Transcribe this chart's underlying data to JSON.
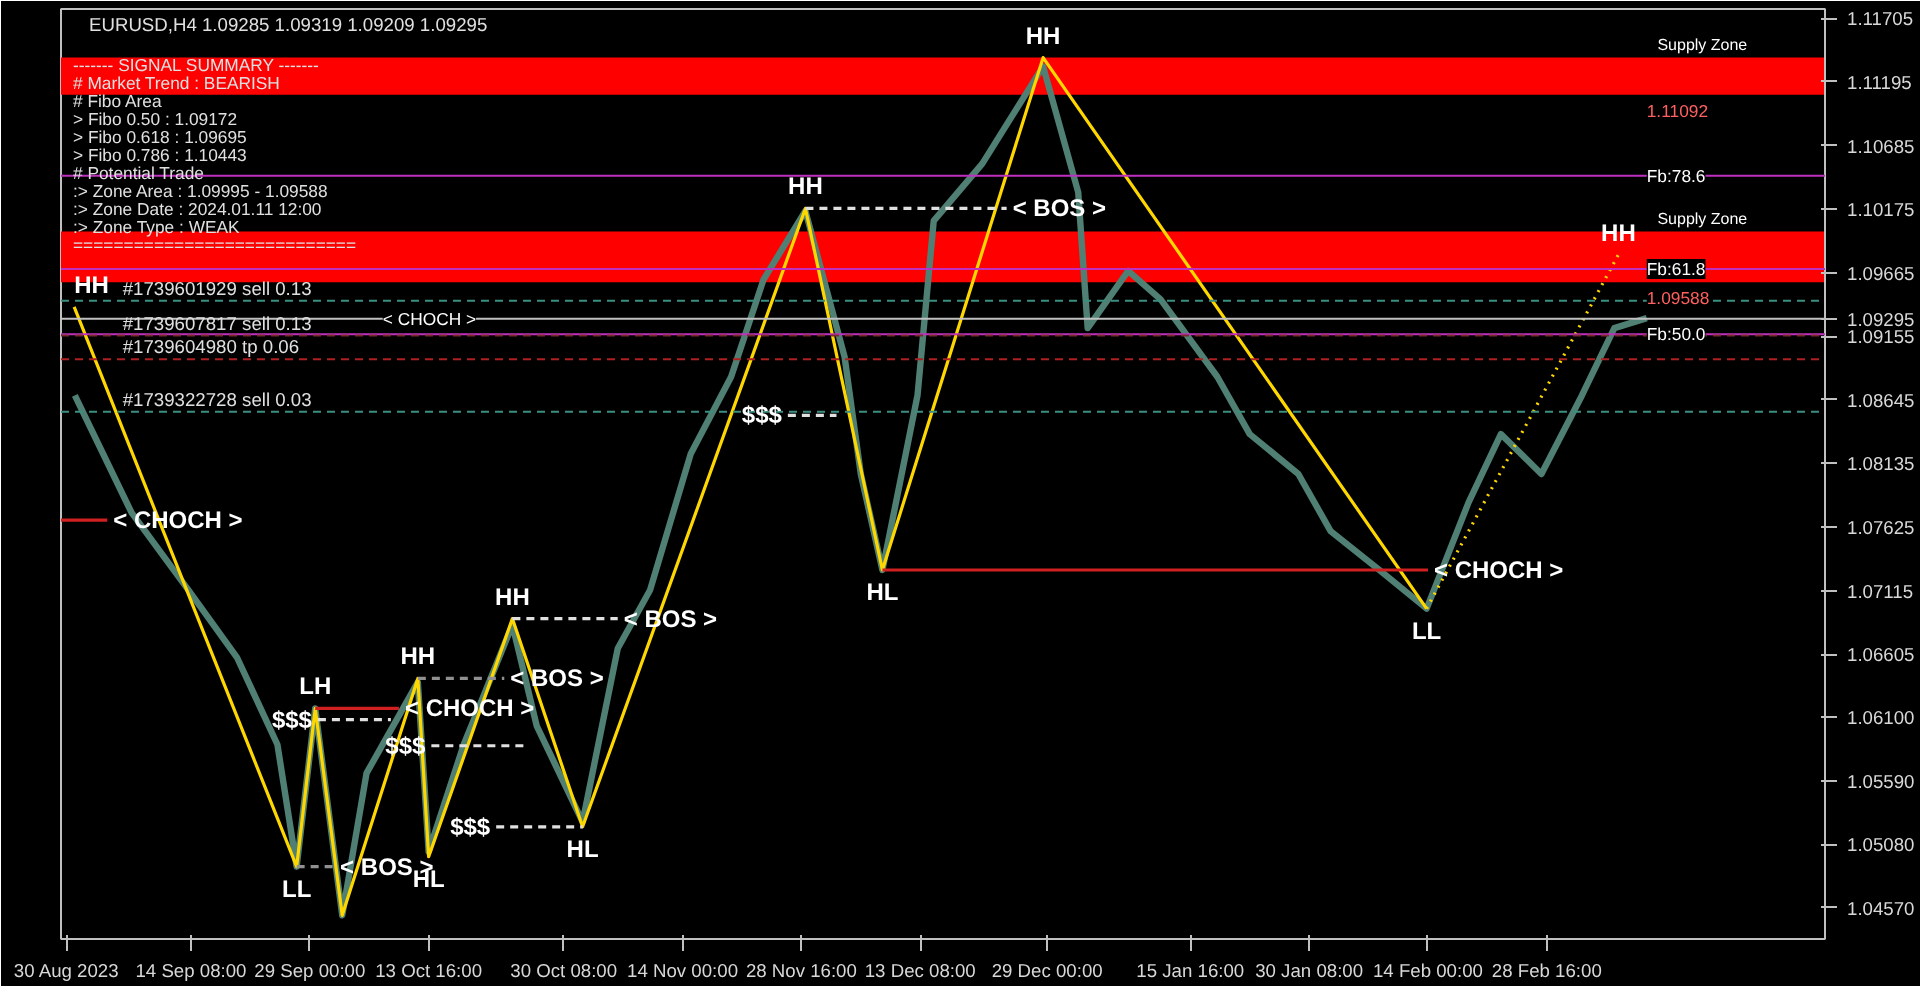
{
  "chart_data": {
    "type": "line",
    "title": "EURUSD,H4  1.09285 1.09319 1.09209 1.09295",
    "xlim": [
      "2023-08-29T07:00",
      "2024-04-03"
    ],
    "ylim": [
      1.0432,
      1.1178
    ],
    "xticks": [
      {
        "value": "2023-08-30T00:00",
        "label": "30 Aug 2023"
      },
      {
        "value": "2023-09-14T08:00",
        "label": "14 Sep 08:00"
      },
      {
        "value": "2023-09-29T00:00",
        "label": "29 Sep 00:00"
      },
      {
        "value": "2023-10-13T16:00",
        "label": "13 Oct 16:00"
      },
      {
        "value": "2023-10-30T08:00",
        "label": "30 Oct 08:00"
      },
      {
        "value": "2023-11-14T00:00",
        "label": "14 Nov 00:00"
      },
      {
        "value": "2023-11-28T16:00",
        "label": "28 Nov 16:00"
      },
      {
        "value": "2023-12-13T08:00",
        "label": "13 Dec 08:00"
      },
      {
        "value": "2023-12-29T00:00",
        "label": "29 Dec 00:00"
      },
      {
        "value": "2024-01-15T16:00",
        "label": "15 Jan 16:00"
      },
      {
        "value": "2024-01-30T08:00",
        "label": "30 Jan 08:00"
      },
      {
        "value": "2024-02-14T00:00",
        "label": "14 Feb 00:00"
      },
      {
        "value": "2024-02-28T16:00",
        "label": "28 Feb 16:00"
      }
    ],
    "yticks": [
      1.11705,
      1.11195,
      1.10685,
      1.10175,
      1.09665,
      {
        "value": 1.09295,
        "label": "1.09295"
      },
      1.09155,
      1.08645,
      1.08135,
      1.07625,
      1.07115,
      1.06605,
      {
        "value": 1.061,
        "label": "1.06100"
      },
      {
        "value": 1.0559,
        "label": "1.05590"
      },
      {
        "value": 1.0508,
        "label": "1.05080"
      },
      {
        "value": 1.0457,
        "label": "1.04570"
      }
    ],
    "series": [
      {
        "color": "#4f8073",
        "x": [
          "2023-08-31",
          "2023-09-07",
          "2023-09-14",
          "2023-09-20",
          "2023-09-25",
          "2023-09-27T09:00",
          "2023-09-29T16:00",
          "2023-10-03",
          "2023-10-06",
          "2023-10-12T08:00",
          "2023-10-13T16:00",
          "2023-10-18",
          "2023-10-24",
          "2023-10-27",
          "2023-11-01T16:00",
          "2023-11-06",
          "2023-11-10",
          "2023-11-15",
          "2023-11-20",
          "2023-11-24",
          "2023-11-29T04:00",
          "2023-12-04",
          "2023-12-06",
          "2023-12-08T16:00",
          "2023-12-13",
          "2023-12-15",
          "2023-12-21",
          "2023-12-28T12:00",
          "2024-01-01T20:00",
          "2024-01-03",
          "2024-01-08",
          "2024-01-12",
          "2024-01-19",
          "2024-01-23",
          "2024-01-29",
          "2024-02-02",
          "2024-02-08",
          "2024-02-13T20:00",
          "2024-02-19",
          "2024-02-23",
          "2024-02-28",
          "2024-03-04",
          "2024-03-08",
          "2024-03-12"
        ],
        "values": [
          1.0868,
          1.0774,
          1.0712,
          1.0658,
          1.0588,
          1.049,
          1.0617,
          1.0451,
          1.0565,
          1.0638,
          1.0502,
          1.0588,
          1.0684,
          1.0603,
          1.0526,
          1.0665,
          1.0712,
          1.0821,
          1.0883,
          1.0961,
          1.1016,
          1.0899,
          1.0805,
          1.0728,
          1.0868,
          1.1008,
          1.1054,
          1.1132,
          1.1031,
          1.0922,
          1.0968,
          1.0945,
          1.0883,
          1.0837,
          1.0805,
          1.0759,
          1.0728,
          1.0697,
          1.0782,
          1.0837,
          1.0805,
          1.0868,
          1.0922,
          1.093
        ]
      },
      {
        "color": "#ffd700",
        "x": [
          "2023-08-30T22:00",
          "2023-09-27T09:00",
          "2023-09-29T16:00",
          "2023-10-03",
          "2023-10-12T08:00",
          "2023-10-13T16:00",
          "2023-10-24",
          "2023-11-01T16:00",
          "2023-11-29T04:00",
          "2023-12-08T16:00",
          "2023-12-28T12:00",
          "2024-02-13T20:00"
        ],
        "values": [
          1.0939,
          1.049,
          1.0617,
          1.0451,
          1.0641,
          1.0498,
          1.0689,
          1.0522,
          1.1018,
          1.0728,
          1.1139,
          1.0697
        ]
      },
      {
        "color": "#ffd700",
        "line_style": "dotted",
        "x": [
          "2024-02-13T20:00",
          "2024-03-08T12:00"
        ],
        "values": [
          1.0697,
          1.0981
        ]
      },
      {
        "color": "#d02020",
        "x": [
          "2023-08-29T07:00",
          "2023-09-04"
        ],
        "values": [
          1.0768,
          1.0768
        ]
      },
      {
        "color": "#909090",
        "line_style": "dashed",
        "x": [
          "2023-09-27T09:00",
          "2023-10-02"
        ],
        "values": [
          1.049,
          1.049
        ]
      },
      {
        "color": "#d02020",
        "x": [
          "2023-09-29T16:00",
          "2023-10-10"
        ],
        "values": [
          1.0617,
          1.0617
        ]
      },
      {
        "color": "#e0e0e0",
        "line_style": "dashed",
        "x": [
          "2023-09-30",
          "2023-10-09"
        ],
        "values": [
          1.0608,
          1.0608
        ]
      },
      {
        "color": "#909090",
        "line_style": "dashed",
        "x": [
          "2023-10-12T08:00",
          "2023-10-23"
        ],
        "values": [
          1.0641,
          1.0641
        ]
      },
      {
        "color": "#e0e0e0",
        "line_style": "dashed",
        "x": [
          "2023-10-14",
          "2023-10-26"
        ],
        "values": [
          1.0587,
          1.0587
        ]
      },
      {
        "color": "#e0e0e0",
        "line_style": "dashed",
        "x": [
          "2023-10-22",
          "2023-11-01T16:00"
        ],
        "values": [
          1.0522,
          1.0522
        ]
      },
      {
        "color": "#e0e0e0",
        "line_style": "dashed",
        "x": [
          "2023-10-24",
          "2023-11-06"
        ],
        "values": [
          1.0689,
          1.0689
        ]
      },
      {
        "color": "#e0e0e0",
        "line_style": "dashed",
        "x": [
          "2023-11-29T04:00",
          "2023-12-24"
        ],
        "values": [
          1.1018,
          1.1018
        ]
      },
      {
        "color": "#e0e0e0",
        "line_style": "dashed",
        "x": [
          "2023-11-27",
          "2023-12-03"
        ],
        "values": [
          1.0852,
          1.0852
        ]
      },
      {
        "color": "#d02020",
        "x": [
          "2023-12-08T16:00",
          "2024-02-14"
        ],
        "values": [
          1.0728,
          1.0728
        ]
      }
    ],
    "bands": [
      {
        "axis": "y",
        "from": 1.11092,
        "to": 1.1139,
        "label": "Supply Zone",
        "color": "#ff0000"
      },
      {
        "axis": "y",
        "from": 1.09588,
        "to": 1.09995,
        "label": "Supply Zone",
        "color": "#ff0000"
      }
    ],
    "ref_lines": [
      {
        "axis": "y",
        "value": 1.10443,
        "color": "#c030c0"
      },
      {
        "axis": "y",
        "value": 1.09695,
        "color": "#c030c0"
      },
      {
        "axis": "y",
        "value": 1.09172,
        "color": "#c030c0"
      },
      {
        "axis": "y",
        "value": 1.09295,
        "color": "#c0c0c0"
      },
      {
        "axis": "y",
        "value": 1.0944,
        "label": "#1739601929 sell 0.13",
        "color": "#3a8f80",
        "line_style": "dashed"
      },
      {
        "axis": "y",
        "value": 1.0916,
        "label": "#1739607817 sell 0.13",
        "color": "#7a2a2a",
        "line_style": "dashed"
      },
      {
        "axis": "y",
        "value": 1.0897,
        "label": "#1739604980 tp 0.06",
        "color": "#b02020",
        "line_style": "dashed"
      },
      {
        "axis": "y",
        "value": 1.0855,
        "label": "#1739322728 sell 0.03",
        "color": "#3a8f80",
        "line_style": "dashed"
      }
    ],
    "annotations": [
      "------- SIGNAL SUMMARY -------",
      "# Market Trend : BEARISH",
      "# Fibo Area",
      "  > Fibo 0.50 : 1.09172",
      "  > Fibo 0.618 : 1.09695",
      "  > Fibo 0.786 : 1.10443",
      "# Potential Trade",
      "  :> Zone Area : 1.09995 - 1.09588",
      "  :> Zone Date : 2024.01.11 12:00",
      "  :> Zone Type : WEAK",
      "============================",
      {
        "text": "HH",
        "x": "2023-08-30T22:00",
        "y": 1.0939
      },
      {
        "text": "LL",
        "x": "2023-09-27T09:00",
        "y": 1.049
      },
      {
        "text": "LH",
        "x": "2023-09-29T16:00",
        "y": 1.0617
      },
      {
        "text": "HH",
        "x": "2023-10-12T08:00",
        "y": 1.0641
      },
      {
        "text": "HL",
        "x": "2023-10-13T16:00",
        "y": 1.0498
      },
      {
        "text": "HH",
        "x": "2023-10-24",
        "y": 1.0689
      },
      {
        "text": "HL",
        "x": "2023-11-01T16:00",
        "y": 1.0522
      },
      {
        "text": "HH",
        "x": "2023-11-29T04:00",
        "y": 1.1018
      },
      {
        "text": "HL",
        "x": "2023-12-08T16:00",
        "y": 1.0728
      },
      {
        "text": "HH",
        "x": "2023-12-28T12:00",
        "y": 1.1139
      },
      {
        "text": "LL",
        "x": "2024-02-13T20:00",
        "y": 1.0697
      },
      {
        "text": "HH",
        "x": "2024-03-08T12:00",
        "y": 1.0981
      },
      {
        "text": "< CHOCH >",
        "x": "2023-09-04",
        "y": 1.0768
      },
      {
        "text": "< BOS >",
        "x": "2023-10-02",
        "y": 1.049
      },
      {
        "text": "< CHOCH >",
        "x": "2023-10-10",
        "y": 1.0617
      },
      {
        "text": "< BOS >",
        "x": "2023-10-23",
        "y": 1.0641
      },
      {
        "text": "< BOS >",
        "x": "2023-11-06",
        "y": 1.0689
      },
      {
        "text": "< BOS >",
        "x": "2023-12-24",
        "y": 1.1018
      },
      {
        "text": "< CHOCH >",
        "x": "2024-02-14",
        "y": 1.0728
      },
      {
        "text": "< CHOCH >",
        "x": "2023-10-08",
        "y": 1.09295
      },
      {
        "text": "$$$",
        "x": "2023-09-30",
        "y": 1.0608
      },
      {
        "text": "$$$",
        "x": "2023-10-14",
        "y": 1.0587
      },
      {
        "text": "$$$",
        "x": "2023-10-22",
        "y": 1.0522
      },
      {
        "text": "$$$",
        "x": "2023-11-27",
        "y": 1.0852
      },
      {
        "text": "Fb:78.6",
        "x": "2024-03-12",
        "y": 1.10443
      },
      {
        "text": "Fb:61.8",
        "x": "2024-03-12",
        "y": 1.09695
      },
      {
        "text": "Fb:50.0",
        "x": "2024-03-12",
        "y": 1.09172
      },
      {
        "text": "1.11092",
        "x": "2024-03-12",
        "y": 1.11092
      },
      {
        "text": "1.09588",
        "x": "2024-03-12",
        "y": 1.09588
      }
    ]
  }
}
